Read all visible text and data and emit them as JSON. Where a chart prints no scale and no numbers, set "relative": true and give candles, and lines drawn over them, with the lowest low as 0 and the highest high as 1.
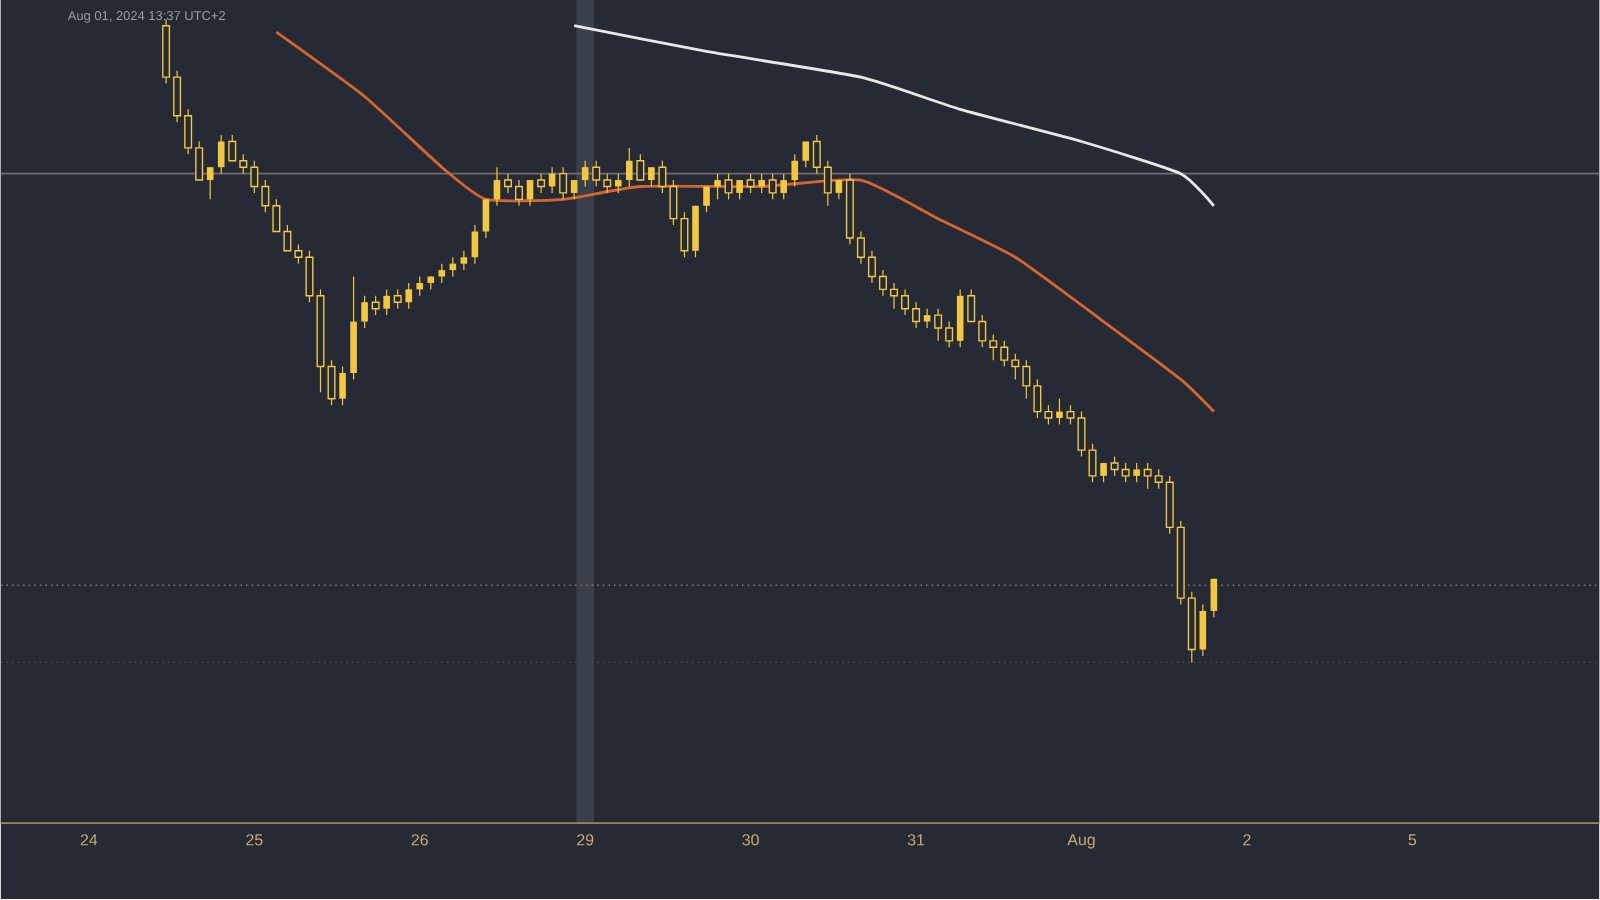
{
  "chart_data": {
    "type": "candlestick",
    "relative": true,
    "color": "#f2c744",
    "annotations": [
      "Aug 01, 2024 13:37 UTC+2"
    ],
    "categories": [
      "24",
      null,
      null,
      null,
      null,
      null,
      null,
      null,
      null,
      null,
      null,
      null,
      null,
      null,
      null,
      "25",
      null,
      null,
      null,
      null,
      null,
      null,
      null,
      null,
      null,
      null,
      null,
      null,
      null,
      null,
      "26",
      null,
      null,
      null,
      null,
      null,
      null,
      null,
      null,
      null,
      null,
      null,
      null,
      null,
      null,
      "29",
      null,
      null,
      null,
      null,
      null,
      null,
      null,
      null,
      null,
      null,
      null,
      null,
      null,
      null,
      "30",
      null,
      null,
      null,
      null,
      null,
      null,
      null,
      null,
      null,
      null,
      null,
      null,
      null,
      null,
      "31",
      null,
      null,
      null,
      null,
      null,
      null,
      null,
      null,
      null,
      null,
      null,
      null,
      null,
      null,
      "Aug",
      null,
      null,
      null,
      null,
      null,
      null,
      null,
      null,
      null,
      null,
      null,
      null,
      null,
      null,
      "2",
      null,
      null,
      null,
      null,
      null,
      null,
      null,
      null,
      null,
      null,
      null,
      null,
      null,
      null,
      "5"
    ],
    "tick_labels": "x",
    "ohlc": [
      null,
      null,
      null,
      null,
      null,
      null,
      null,
      [
        0.99,
        1.0,
        0.9,
        0.91
      ],
      [
        0.91,
        0.92,
        0.84,
        0.85
      ],
      [
        0.85,
        0.86,
        0.79,
        0.8
      ],
      [
        0.8,
        0.81,
        0.75,
        0.75
      ],
      [
        0.75,
        0.77,
        0.72,
        0.77
      ],
      [
        0.77,
        0.82,
        0.76,
        0.81
      ],
      [
        0.81,
        0.82,
        0.78,
        0.78
      ],
      [
        0.78,
        0.79,
        0.76,
        0.77
      ],
      [
        0.77,
        0.78,
        0.73,
        0.74
      ],
      [
        0.74,
        0.75,
        0.7,
        0.71
      ],
      [
        0.71,
        0.72,
        0.67,
        0.67
      ],
      [
        0.67,
        0.68,
        0.64,
        0.64
      ],
      [
        0.64,
        0.65,
        0.62,
        0.63
      ],
      [
        0.63,
        0.64,
        0.56,
        0.57
      ],
      [
        0.57,
        0.58,
        0.42,
        0.46
      ],
      [
        0.46,
        0.47,
        0.4,
        0.41
      ],
      [
        0.41,
        0.46,
        0.4,
        0.45
      ],
      [
        0.45,
        0.6,
        0.44,
        0.53
      ],
      [
        0.53,
        0.57,
        0.52,
        0.56
      ],
      [
        0.56,
        0.57,
        0.54,
        0.55
      ],
      [
        0.55,
        0.58,
        0.54,
        0.57
      ],
      [
        0.57,
        0.58,
        0.55,
        0.56
      ],
      [
        0.56,
        0.59,
        0.55,
        0.58
      ],
      [
        0.58,
        0.6,
        0.57,
        0.59
      ],
      [
        0.59,
        0.6,
        0.58,
        0.6
      ],
      [
        0.6,
        0.62,
        0.59,
        0.61
      ],
      [
        0.61,
        0.63,
        0.6,
        0.62
      ],
      [
        0.62,
        0.64,
        0.61,
        0.63
      ],
      [
        0.63,
        0.68,
        0.62,
        0.67
      ],
      [
        0.67,
        0.72,
        0.66,
        0.72
      ],
      [
        0.72,
        0.77,
        0.71,
        0.75
      ],
      [
        0.75,
        0.76,
        0.73,
        0.74
      ],
      [
        0.74,
        0.75,
        0.71,
        0.72
      ],
      [
        0.72,
        0.75,
        0.71,
        0.75
      ],
      [
        0.75,
        0.76,
        0.73,
        0.74
      ],
      [
        0.74,
        0.77,
        0.73,
        0.76
      ],
      [
        0.76,
        0.77,
        0.72,
        0.73
      ],
      [
        0.73,
        0.75,
        0.72,
        0.75
      ],
      [
        0.75,
        0.78,
        0.74,
        0.77
      ],
      [
        0.77,
        0.78,
        0.74,
        0.75
      ],
      [
        0.75,
        0.76,
        0.73,
        0.74
      ],
      [
        0.74,
        0.76,
        0.73,
        0.75
      ],
      [
        0.75,
        0.8,
        0.74,
        0.78
      ],
      [
        0.78,
        0.79,
        0.75,
        0.75
      ],
      [
        0.75,
        0.77,
        0.74,
        0.77
      ],
      [
        0.77,
        0.78,
        0.73,
        0.74
      ],
      [
        0.74,
        0.75,
        0.68,
        0.69
      ],
      [
        0.69,
        0.7,
        0.63,
        0.64
      ],
      [
        0.64,
        0.71,
        0.63,
        0.71
      ],
      [
        0.71,
        0.74,
        0.7,
        0.74
      ],
      [
        0.74,
        0.76,
        0.72,
        0.75
      ],
      [
        0.75,
        0.76,
        0.72,
        0.73
      ],
      [
        0.73,
        0.75,
        0.72,
        0.75
      ],
      [
        0.75,
        0.76,
        0.73,
        0.74
      ],
      [
        0.74,
        0.76,
        0.73,
        0.75
      ],
      [
        0.75,
        0.76,
        0.72,
        0.73
      ],
      [
        0.73,
        0.76,
        0.72,
        0.75
      ],
      [
        0.75,
        0.79,
        0.74,
        0.78
      ],
      [
        0.78,
        0.81,
        0.77,
        0.81
      ],
      [
        0.81,
        0.82,
        0.76,
        0.77
      ],
      [
        0.77,
        0.78,
        0.71,
        0.73
      ],
      [
        0.73,
        0.75,
        0.72,
        0.75
      ],
      [
        0.75,
        0.76,
        0.65,
        0.66
      ],
      [
        0.66,
        0.67,
        0.62,
        0.63
      ],
      [
        0.63,
        0.64,
        0.59,
        0.6
      ],
      [
        0.6,
        0.61,
        0.57,
        0.58
      ],
      [
        0.58,
        0.59,
        0.55,
        0.57
      ],
      [
        0.57,
        0.58,
        0.54,
        0.55
      ],
      [
        0.55,
        0.56,
        0.52,
        0.53
      ],
      [
        0.53,
        0.55,
        0.52,
        0.54
      ],
      [
        0.54,
        0.55,
        0.5,
        0.52
      ],
      [
        0.52,
        0.53,
        0.49,
        0.5
      ],
      [
        0.5,
        0.58,
        0.49,
        0.57
      ],
      [
        0.57,
        0.58,
        0.53,
        0.53
      ],
      [
        0.53,
        0.54,
        0.49,
        0.5
      ],
      [
        0.5,
        0.51,
        0.47,
        0.49
      ],
      [
        0.49,
        0.5,
        0.46,
        0.47
      ],
      [
        0.47,
        0.48,
        0.44,
        0.46
      ],
      [
        0.46,
        0.47,
        0.41,
        0.43
      ],
      [
        0.43,
        0.44,
        0.38,
        0.39
      ],
      [
        0.39,
        0.4,
        0.37,
        0.38
      ],
      [
        0.38,
        0.41,
        0.37,
        0.39
      ],
      [
        0.39,
        0.4,
        0.37,
        0.38
      ],
      [
        0.38,
        0.39,
        0.32,
        0.33
      ],
      [
        0.33,
        0.34,
        0.28,
        0.29
      ],
      [
        0.29,
        0.31,
        0.28,
        0.31
      ],
      [
        0.31,
        0.32,
        0.29,
        0.3
      ],
      [
        0.3,
        0.31,
        0.28,
        0.29
      ],
      [
        0.29,
        0.31,
        0.28,
        0.3
      ],
      [
        0.3,
        0.31,
        0.27,
        0.29
      ],
      [
        0.29,
        0.3,
        0.27,
        0.28
      ],
      [
        0.28,
        0.29,
        0.2,
        0.21
      ],
      [
        0.21,
        0.22,
        0.09,
        0.1
      ],
      [
        0.1,
        0.11,
        0.0,
        0.02
      ],
      [
        0.02,
        0.09,
        0.01,
        0.08
      ],
      [
        0.08,
        0.13,
        0.07,
        0.13
      ],
      null,
      null,
      null,
      null,
      null,
      null,
      null,
      null,
      null,
      null,
      null,
      null,
      null,
      null,
      null,
      null,
      null,
      null
    ],
    "series": [
      {
        "type": "line",
        "color": "#d8652f",
        "values": [
          null,
          null,
          null,
          null,
          null,
          null,
          null,
          null,
          null,
          null,
          null,
          null,
          null,
          null,
          null,
          null,
          null,
          0.98,
          null,
          null,
          null,
          null,
          null,
          null,
          null,
          0.88,
          null,
          null,
          null,
          null,
          null,
          null,
          0.77,
          null,
          null,
          null,
          0.72,
          null,
          null,
          null,
          null,
          null,
          null,
          0.72,
          null,
          null,
          null,
          null,
          null,
          null,
          0.74,
          null,
          null,
          null,
          null,
          null,
          null,
          null,
          null,
          null,
          null,
          0.74,
          null,
          null,
          null,
          null,
          null,
          null,
          null,
          null,
          0.75,
          null,
          null,
          null,
          null,
          null,
          null,
          0.69,
          null,
          null,
          null,
          null,
          null,
          null,
          0.63,
          null,
          null,
          null,
          null,
          null,
          null,
          null,
          0.53,
          null,
          null,
          null,
          null,
          null,
          null,
          0.44,
          null,
          null,
          0.39,
          null,
          null,
          null,
          null,
          null,
          null,
          null,
          null,
          null,
          null,
          null,
          null,
          null,
          null,
          null,
          null,
          null,
          null
        ]
      },
      {
        "type": "line",
        "color": "#e8e8e8",
        "values": [
          null,
          null,
          null,
          null,
          null,
          null,
          null,
          null,
          null,
          null,
          null,
          null,
          null,
          null,
          null,
          null,
          null,
          null,
          null,
          null,
          null,
          null,
          null,
          null,
          null,
          null,
          null,
          null,
          null,
          null,
          null,
          null,
          null,
          null,
          null,
          null,
          null,
          null,
          null,
          null,
          null,
          null,
          null,
          null,
          0.99,
          null,
          null,
          null,
          null,
          null,
          null,
          null,
          null,
          null,
          null,
          null,
          0.95,
          null,
          null,
          null,
          null,
          null,
          null,
          null,
          null,
          null,
          null,
          null,
          null,
          null,
          0.91,
          null,
          null,
          null,
          null,
          null,
          null,
          null,
          null,
          0.86,
          null,
          null,
          null,
          null,
          null,
          null,
          null,
          null,
          null,
          null,
          0.81,
          null,
          null,
          null,
          null,
          null,
          null,
          null,
          null,
          0.76,
          null,
          null,
          0.71,
          null,
          null,
          null,
          null,
          null,
          null,
          null,
          null,
          null,
          null,
          null,
          null,
          null,
          null,
          null,
          null,
          null,
          null
        ]
      }
    ],
    "ref_lines": [
      {
        "axis": "y",
        "value": 0.76,
        "color": "#6e6a70",
        "line_style": "solid"
      },
      {
        "axis": "y",
        "value": 0.12,
        "color": "#8a7a45",
        "line_style": "dotted"
      },
      {
        "axis": "y",
        "value": 0.0,
        "color": "#4a4a40",
        "line_style": "dotted"
      }
    ],
    "bands": [
      {
        "axis": "x",
        "from": "29",
        "to": "29",
        "color": "#3a3f4c"
      }
    ]
  }
}
